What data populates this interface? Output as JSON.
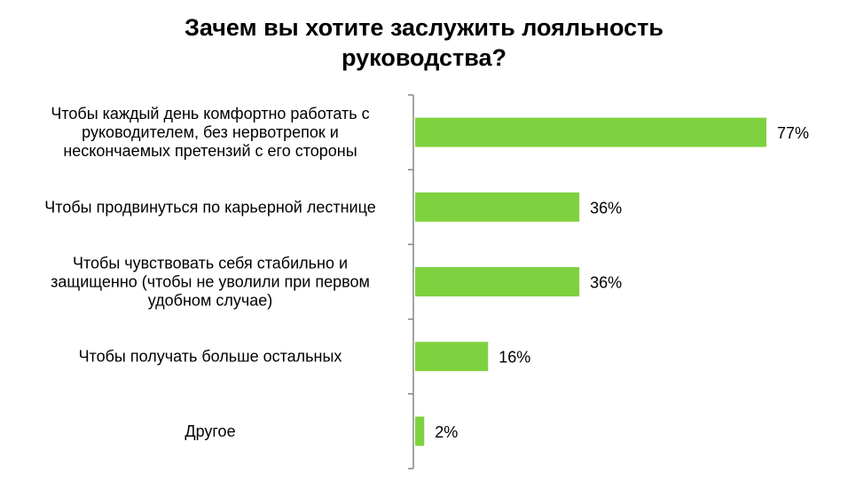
{
  "chart_data": {
    "type": "bar",
    "orientation": "horizontal",
    "title": [
      "Зачем вы хотите заслужить лояльность",
      "руководства?"
    ],
    "categories": [
      [
        "Чтобы каждый день комфортно работать с",
        "руководителем, без нервотрепок и",
        "нескончаемых претензий с его стороны"
      ],
      [
        "Чтобы продвинуться по карьерной лестнице"
      ],
      [
        "Чтобы чувствовать себя стабильно и",
        "защищенно (чтобы не уволили при первом",
        "удобном случае)"
      ],
      [
        "Чтобы получать больше остальных"
      ],
      [
        "Другое"
      ]
    ],
    "values": [
      77,
      36,
      36,
      16,
      2
    ],
    "value_labels": [
      "77%",
      "36%",
      "36%",
      "16%",
      "2%"
    ],
    "xlim": [
      0,
      100
    ],
    "bar_color": "#7ed23f",
    "axis_color": "#868686",
    "grid": false,
    "legend": "none"
  }
}
